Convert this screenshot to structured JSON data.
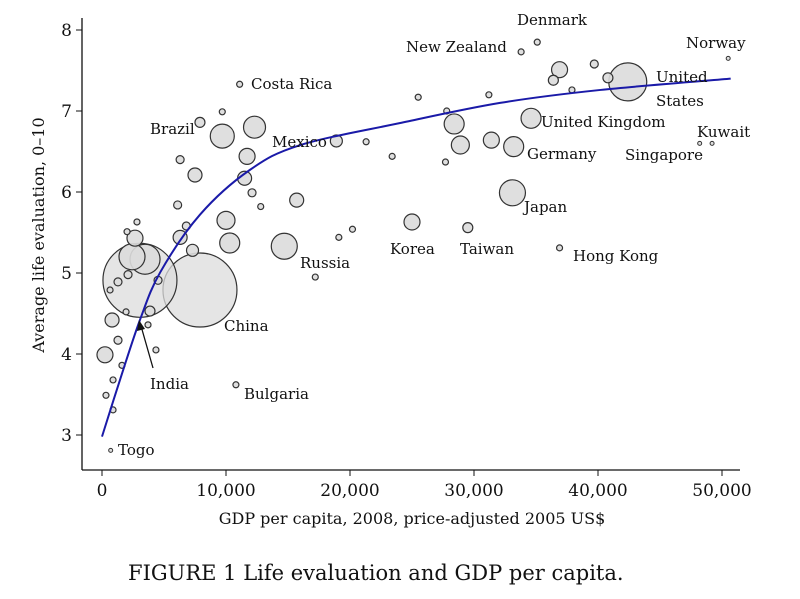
{
  "caption": "FIGURE 1 Life evaluation and GDP per capita.",
  "chart_data": {
    "type": "scatter",
    "title": "",
    "xlabel": "GDP per capita, 2008, price-adjusted 2005 US$",
    "ylabel": "Average life evaluation, 0–10",
    "xlim": [
      0,
      51000
    ],
    "ylim": [
      2.8,
      8.1
    ],
    "xticks": [
      0,
      10000,
      20000,
      30000,
      40000,
      50000
    ],
    "xtick_labels": [
      "0",
      "10,000",
      "20,000",
      "30,000",
      "40,000",
      "50,000"
    ],
    "yticks": [
      3,
      4,
      5,
      6,
      7,
      8
    ],
    "ytick_labels": [
      "3",
      "4",
      "5",
      "6",
      "7",
      "8"
    ],
    "grid": false,
    "marker_fill": "#dcdcdc",
    "marker_edge": "#333333",
    "fit_color": "#1a1aa8",
    "points": [
      {
        "label": "China",
        "gdp": 7900,
        "life": 4.79,
        "size": 37
      },
      {
        "label": "India",
        "gdp": 3060,
        "life": 4.91,
        "size": 37
      },
      {
        "label": "United States",
        "gdp": 42400,
        "life": 7.36,
        "size": 19
      },
      {
        "label": "Japan",
        "gdp": 33100,
        "life": 5.99,
        "size": 13
      },
      {
        "label": "Germany",
        "gdp": 33200,
        "life": 6.56,
        "size": 10
      },
      {
        "label": "United Kingdom",
        "gdp": 34600,
        "life": 6.91,
        "size": 10
      },
      {
        "label": "Brazil",
        "gdp": 9700,
        "life": 6.69,
        "size": 12
      },
      {
        "label": "Mexico",
        "gdp": 12300,
        "life": 6.8,
        "size": 11
      },
      {
        "label": "Russia",
        "gdp": 14700,
        "life": 5.33,
        "size": 13
      },
      {
        "label": "Korea",
        "gdp": 25000,
        "life": 5.63,
        "size": 8
      },
      {
        "label": "Taiwan",
        "gdp": 29500,
        "life": 5.56,
        "size": 5
      },
      {
        "label": "Hong Kong",
        "gdp": 36900,
        "life": 5.31,
        "size": 3
      },
      {
        "label": "Denmark",
        "gdp": 35100,
        "life": 7.85,
        "size": 3
      },
      {
        "label": "New Zealand",
        "gdp": 33800,
        "life": 7.73,
        "size": 3
      },
      {
        "label": "Norway",
        "gdp": 50500,
        "life": 7.65,
        "size": 2
      },
      {
        "label": "Kuwait",
        "gdp": 49200,
        "life": 6.6,
        "size": 2
      },
      {
        "label": "Singapore",
        "gdp": 48200,
        "life": 6.6,
        "size": 2
      },
      {
        "label": "Costa Rica",
        "gdp": 11100,
        "life": 7.33,
        "size": 3
      },
      {
        "label": "Bulgaria",
        "gdp": 10800,
        "life": 3.62,
        "size": 3
      },
      {
        "label": "Togo",
        "gdp": 700,
        "life": 2.81,
        "size": 2
      },
      {
        "gdp": 3470,
        "life": 5.17,
        "size": 15
      },
      {
        "gdp": 2420,
        "life": 5.2,
        "size": 13
      },
      {
        "gdp": 40800,
        "life": 7.41,
        "size": 5
      },
      {
        "gdp": 36900,
        "life": 7.51,
        "size": 8
      },
      {
        "gdp": 36400,
        "life": 7.38,
        "size": 5
      },
      {
        "gdp": 39700,
        "life": 7.58,
        "size": 4
      },
      {
        "gdp": 37900,
        "life": 7.26,
        "size": 3
      },
      {
        "gdp": 31200,
        "life": 7.2,
        "size": 3
      },
      {
        "gdp": 28400,
        "life": 6.84,
        "size": 10
      },
      {
        "gdp": 27800,
        "life": 7.0,
        "size": 3
      },
      {
        "gdp": 28900,
        "life": 6.58,
        "size": 9
      },
      {
        "gdp": 31400,
        "life": 6.64,
        "size": 8
      },
      {
        "gdp": 27700,
        "life": 6.37,
        "size": 3
      },
      {
        "gdp": 25500,
        "life": 7.17,
        "size": 3
      },
      {
        "gdp": 23400,
        "life": 6.44,
        "size": 3
      },
      {
        "gdp": 21300,
        "life": 6.62,
        "size": 3
      },
      {
        "gdp": 18900,
        "life": 6.63,
        "size": 6
      },
      {
        "gdp": 15700,
        "life": 5.9,
        "size": 7
      },
      {
        "gdp": 11500,
        "life": 6.17,
        "size": 7
      },
      {
        "gdp": 11700,
        "life": 6.44,
        "size": 8
      },
      {
        "gdp": 12100,
        "life": 5.99,
        "size": 4
      },
      {
        "gdp": 10000,
        "life": 5.65,
        "size": 9
      },
      {
        "gdp": 10300,
        "life": 5.37,
        "size": 10
      },
      {
        "gdp": 7500,
        "life": 6.21,
        "size": 7
      },
      {
        "gdp": 6300,
        "life": 6.4,
        "size": 4
      },
      {
        "gdp": 7900,
        "life": 6.86,
        "size": 5
      },
      {
        "gdp": 9700,
        "life": 6.99,
        "size": 3
      },
      {
        "gdp": 12800,
        "life": 5.82,
        "size": 3
      },
      {
        "gdp": 20200,
        "life": 5.54,
        "size": 3
      },
      {
        "gdp": 19100,
        "life": 5.44,
        "size": 3
      },
      {
        "gdp": 17200,
        "life": 4.95,
        "size": 3
      },
      {
        "gdp": 6300,
        "life": 5.44,
        "size": 7
      },
      {
        "gdp": 7300,
        "life": 5.28,
        "size": 6
      },
      {
        "gdp": 6100,
        "life": 5.84,
        "size": 4
      },
      {
        "gdp": 6800,
        "life": 5.58,
        "size": 4
      },
      {
        "gdp": 2660,
        "life": 5.43,
        "size": 8
      },
      {
        "gdp": 810,
        "life": 4.42,
        "size": 7
      },
      {
        "gdp": 240,
        "life": 3.99,
        "size": 8
      },
      {
        "gdp": 1290,
        "life": 4.17,
        "size": 4
      },
      {
        "gdp": 1610,
        "life": 3.86,
        "size": 3
      },
      {
        "gdp": 1940,
        "life": 4.52,
        "size": 3
      },
      {
        "gdp": 890,
        "life": 3.68,
        "size": 3
      },
      {
        "gdp": 320,
        "life": 3.49,
        "size": 3
      },
      {
        "gdp": 890,
        "life": 3.31,
        "size": 3
      },
      {
        "gdp": 3710,
        "life": 4.36,
        "size": 3
      },
      {
        "gdp": 4350,
        "life": 4.05,
        "size": 3
      },
      {
        "gdp": 4520,
        "life": 4.91,
        "size": 4
      },
      {
        "gdp": 3870,
        "life": 4.53,
        "size": 5
      },
      {
        "gdp": 2020,
        "life": 5.51,
        "size": 3
      },
      {
        "gdp": 2820,
        "life": 5.63,
        "size": 3
      },
      {
        "gdp": 650,
        "life": 4.79,
        "size": 3
      },
      {
        "gdp": 1290,
        "life": 4.89,
        "size": 4
      },
      {
        "gdp": 2100,
        "life": 4.98,
        "size": 4
      }
    ],
    "fit_curve": [
      {
        "gdp": 0,
        "life": 2.98
      },
      {
        "gdp": 1450,
        "life": 3.68
      },
      {
        "gdp": 3060,
        "life": 4.42
      },
      {
        "gdp": 4700,
        "life": 5.01
      },
      {
        "gdp": 7900,
        "life": 5.72
      },
      {
        "gdp": 11900,
        "life": 6.27
      },
      {
        "gdp": 16000,
        "life": 6.58
      },
      {
        "gdp": 24000,
        "life": 6.85
      },
      {
        "gdp": 32100,
        "life": 7.1
      },
      {
        "gdp": 40200,
        "life": 7.26
      },
      {
        "gdp": 50700,
        "life": 7.4
      }
    ],
    "annotations": [
      {
        "text": "Denmark"
      },
      {
        "text": "New Zealand"
      },
      {
        "text": "Norway"
      },
      {
        "text": "United"
      },
      {
        "text": "States"
      },
      {
        "text": "Costa Rica"
      },
      {
        "text": "Brazil"
      },
      {
        "text": "Mexico"
      },
      {
        "text": "United Kingdom"
      },
      {
        "text": "Kuwait"
      },
      {
        "text": "Singapore"
      },
      {
        "text": "Germany"
      },
      {
        "text": "Japan"
      },
      {
        "text": "Korea"
      },
      {
        "text": "Taiwan"
      },
      {
        "text": "Hong Kong"
      },
      {
        "text": "Russia"
      },
      {
        "text": "China"
      },
      {
        "text": "India"
      },
      {
        "text": "Bulgaria"
      },
      {
        "text": "Togo"
      }
    ]
  }
}
